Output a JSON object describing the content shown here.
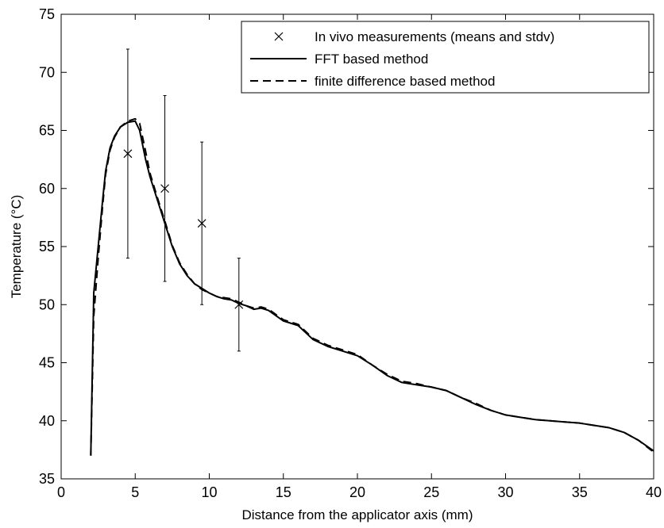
{
  "chart_data": {
    "type": "line",
    "title": "",
    "xlabel": "Distance from the applicator axis (mm)",
    "ylabel": "Temperature (°C)",
    "xlim": [
      0,
      40
    ],
    "ylim": [
      35,
      75
    ],
    "xticks": [
      0,
      5,
      10,
      15,
      20,
      25,
      30,
      35,
      40
    ],
    "yticks": [
      35,
      40,
      45,
      50,
      55,
      60,
      65,
      70,
      75
    ],
    "grid": false,
    "legend": {
      "position": "top-right",
      "entries": [
        "In vivo measurements (means and stdv)",
        "FFT based method",
        "finite difference based method"
      ]
    },
    "series": [
      {
        "name": "In vivo measurements (means and stdv)",
        "style": "markers-with-errorbars",
        "points": [
          {
            "x": 4.5,
            "y": 63,
            "ylow": 54,
            "yhigh": 72
          },
          {
            "x": 7.0,
            "y": 60,
            "ylow": 52,
            "yhigh": 68
          },
          {
            "x": 9.5,
            "y": 57,
            "ylow": 50,
            "yhigh": 64
          },
          {
            "x": 12.0,
            "y": 50,
            "ylow": 46,
            "yhigh": 54
          }
        ]
      },
      {
        "name": "FFT based method",
        "style": "solid",
        "x": [
          2.0,
          2.2,
          2.5,
          2.8,
          3.0,
          3.3,
          3.6,
          4.0,
          4.5,
          5.0,
          5.3,
          5.7,
          6.0,
          6.5,
          7.0,
          7.5,
          8.0,
          8.5,
          9.0,
          9.5,
          10.0,
          10.5,
          11.0,
          11.5,
          12.0,
          12.5,
          13.0,
          13.5,
          14.0,
          15.0,
          16.0,
          17.0,
          18.0,
          19.0,
          20.0,
          21.0,
          22.0,
          23.0,
          24.0,
          25.0,
          26.0,
          27.0,
          28.0,
          29.0,
          30.0,
          31.0,
          32.0,
          33.0,
          34.0,
          35.0,
          36.0,
          37.0,
          38.0,
          39.0,
          40.0
        ],
        "y": [
          37.0,
          51.0,
          55.0,
          59.0,
          61.5,
          63.5,
          64.5,
          65.3,
          65.7,
          65.8,
          65.0,
          62.5,
          61.0,
          59.0,
          57.0,
          55.0,
          53.5,
          52.5,
          51.8,
          51.4,
          51.0,
          50.7,
          50.5,
          50.4,
          50.1,
          49.9,
          49.6,
          49.7,
          49.5,
          48.6,
          48.2,
          47.0,
          46.4,
          46.0,
          45.6,
          44.8,
          43.9,
          43.3,
          43.1,
          42.9,
          42.6,
          42.0,
          41.4,
          40.9,
          40.5,
          40.3,
          40.1,
          40.0,
          39.9,
          39.8,
          39.6,
          39.4,
          39.0,
          38.3,
          37.4
        ]
      },
      {
        "name": "finite difference based method",
        "style": "dashed",
        "x": [
          2.0,
          2.2,
          2.5,
          2.8,
          3.0,
          3.3,
          3.6,
          4.0,
          4.5,
          5.0,
          5.3,
          5.7,
          6.0,
          6.5,
          7.0,
          7.5,
          8.0,
          8.5,
          9.0,
          9.5,
          10.0,
          10.5,
          11.0,
          11.5,
          12.0,
          12.5,
          13.0,
          13.5,
          14.0,
          15.0,
          16.0,
          17.0,
          18.0,
          19.0,
          20.0,
          21.0,
          22.0,
          23.0,
          24.0,
          25.0,
          26.0,
          27.0,
          28.0,
          29.0,
          30.0,
          31.0,
          32.0,
          33.0,
          34.0,
          35.0,
          36.0,
          37.0,
          38.0,
          39.0,
          40.0
        ],
        "y": [
          37.0,
          49.0,
          54.0,
          58.5,
          61.2,
          63.3,
          64.4,
          65.3,
          65.8,
          66.0,
          65.6,
          63.2,
          61.3,
          59.2,
          57.2,
          55.1,
          53.6,
          52.6,
          51.8,
          51.3,
          51.0,
          50.7,
          50.6,
          50.5,
          50.2,
          49.9,
          49.7,
          49.8,
          49.6,
          48.7,
          48.3,
          47.1,
          46.5,
          46.1,
          45.7,
          44.8,
          44.0,
          43.4,
          43.2,
          42.9,
          42.6,
          42.0,
          41.5,
          40.9,
          40.5,
          40.3,
          40.1,
          40.0,
          39.9,
          39.8,
          39.6,
          39.4,
          39.0,
          38.3,
          37.3
        ]
      }
    ]
  }
}
